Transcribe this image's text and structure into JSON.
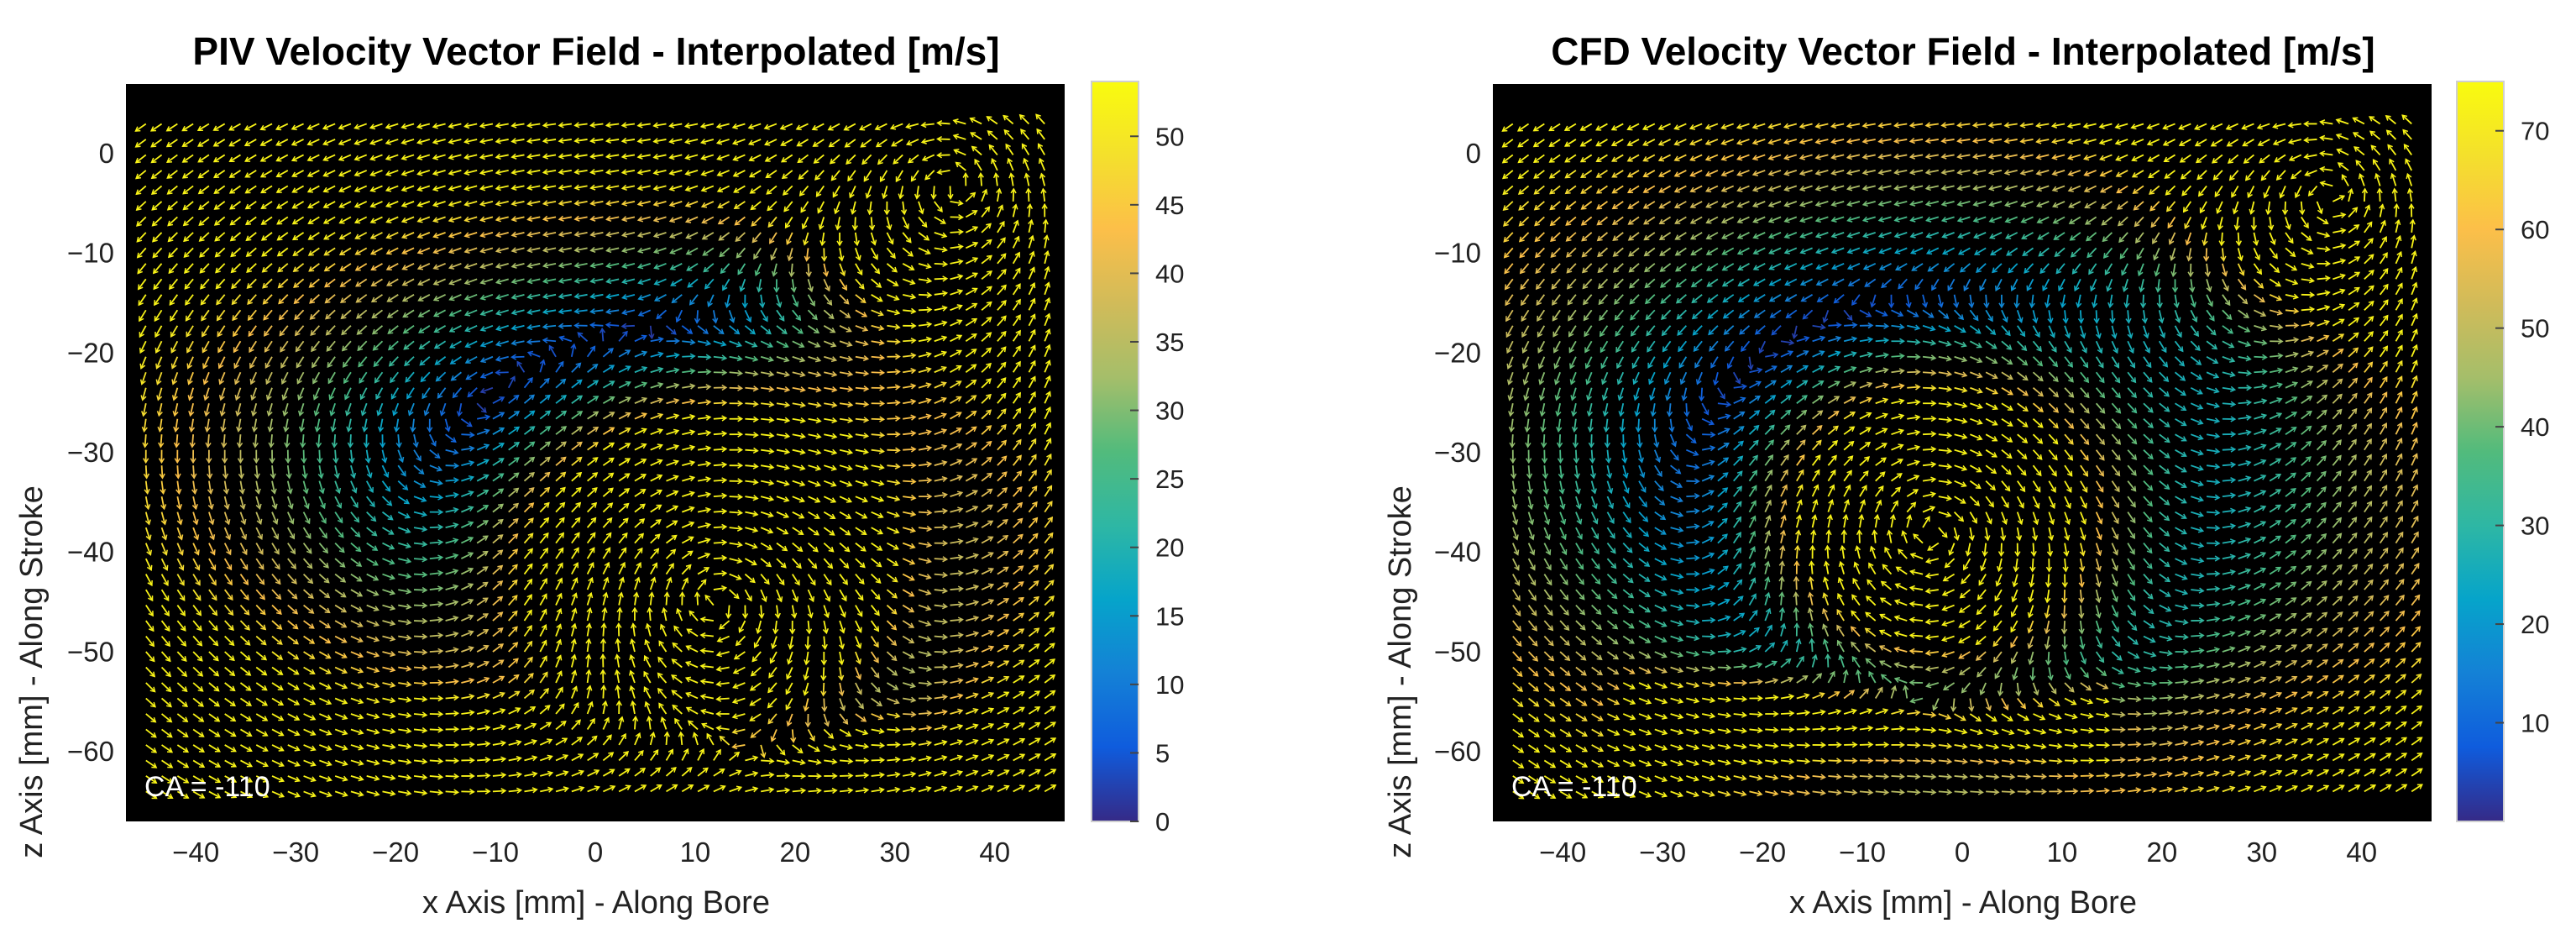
{
  "chart_data": [
    {
      "type": "vector_field",
      "title": "PIV Velocity Vector Field - Interpolated [m/s]",
      "xlabel": "x Axis [mm] - Along Bore",
      "ylabel": "z Axis [mm] - Along Stroke",
      "xlim": [
        -47,
        47
      ],
      "ylim": [
        -67,
        7
      ],
      "xticks": [
        -40,
        -30,
        -20,
        -10,
        0,
        10,
        20,
        30,
        40
      ],
      "yticks": [
        0,
        -10,
        -20,
        -30,
        -40,
        -50,
        -60
      ],
      "xtick_labels": [
        "−40",
        "−30",
        "−20",
        "−10",
        "0",
        "10",
        "20",
        "30",
        "40"
      ],
      "ytick_labels": [
        "0",
        "−10",
        "−20",
        "−30",
        "−40",
        "−50",
        "−60"
      ],
      "colorbar": {
        "min": 0,
        "max": 54,
        "ticks": [
          0,
          5,
          10,
          15,
          20,
          25,
          30,
          35,
          40,
          45,
          50
        ],
        "tick_labels": [
          "0",
          "5",
          "10",
          "15",
          "20",
          "25",
          "30",
          "35",
          "40",
          "45",
          "50"
        ]
      },
      "annotation": "CA = -110",
      "background": "#000000",
      "vortices": [
        {
          "x": 12,
          "z": -45,
          "sense": "clockwise"
        },
        {
          "x": 36,
          "z": -3,
          "sense": "counterclockwise"
        }
      ],
      "peak_region": {
        "x_range": [
          -10,
          20
        ],
        "z": -61,
        "speed": 50
      }
    },
    {
      "type": "vector_field",
      "title": "CFD Velocity Vector Field - Interpolated [m/s]",
      "xlabel": "x Axis [mm] - Along Bore",
      "ylabel": "z Axis [mm] - Along Stroke",
      "xlim": [
        -47,
        47
      ],
      "ylim": [
        -67,
        7
      ],
      "xticks": [
        -40,
        -30,
        -20,
        -10,
        0,
        10,
        20,
        30,
        40
      ],
      "yticks": [
        0,
        -10,
        -20,
        -30,
        -40,
        -50,
        -60
      ],
      "xtick_labels": [
        "−40",
        "−30",
        "−20",
        "−10",
        "0",
        "10",
        "20",
        "30",
        "40"
      ],
      "ytick_labels": [
        "0",
        "−10",
        "−20",
        "−30",
        "−40",
        "−50",
        "−60"
      ],
      "colorbar": {
        "min": 0,
        "max": 75,
        "ticks": [
          10,
          20,
          30,
          40,
          50,
          60,
          70
        ],
        "tick_labels": [
          "10",
          "20",
          "30",
          "40",
          "50",
          "60",
          "70"
        ]
      },
      "annotation": "CA = -110",
      "background": "#000000",
      "vortices": [
        {
          "x": -3,
          "z": -38,
          "sense": "clockwise"
        },
        {
          "x": 37,
          "z": -4,
          "sense": "counterclockwise"
        }
      ],
      "peak_region": {
        "x_range": [
          -25,
          5
        ],
        "z": -57,
        "speed": 55
      }
    }
  ]
}
